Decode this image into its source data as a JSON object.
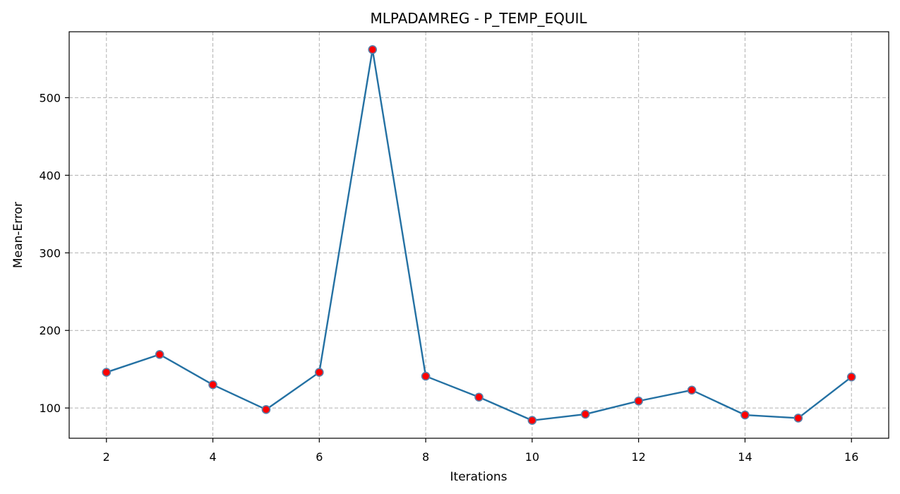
{
  "chart_data": {
    "type": "line",
    "title": "MLPADAMREG - P_TEMP_EQUIL",
    "xlabel": "Iterations",
    "ylabel": "Mean-Error",
    "x": [
      2,
      3,
      4,
      5,
      6,
      7,
      8,
      9,
      10,
      11,
      12,
      13,
      14,
      15,
      16
    ],
    "series": [
      {
        "values": [
          146,
          169,
          130,
          98,
          146,
          562,
          141,
          114,
          84,
          92,
          109,
          123,
          91,
          87,
          140
        ],
        "line_color": "#2471a3",
        "marker_face": "#ff0000",
        "marker_edge": "#5a7fa8"
      }
    ],
    "xlim": [
      1.3,
      16.7
    ],
    "ylim": [
      61,
      585
    ],
    "xticks": [
      2,
      4,
      6,
      8,
      10,
      12,
      14,
      16
    ],
    "yticks": [
      100,
      200,
      300,
      400,
      500
    ],
    "grid": true
  }
}
